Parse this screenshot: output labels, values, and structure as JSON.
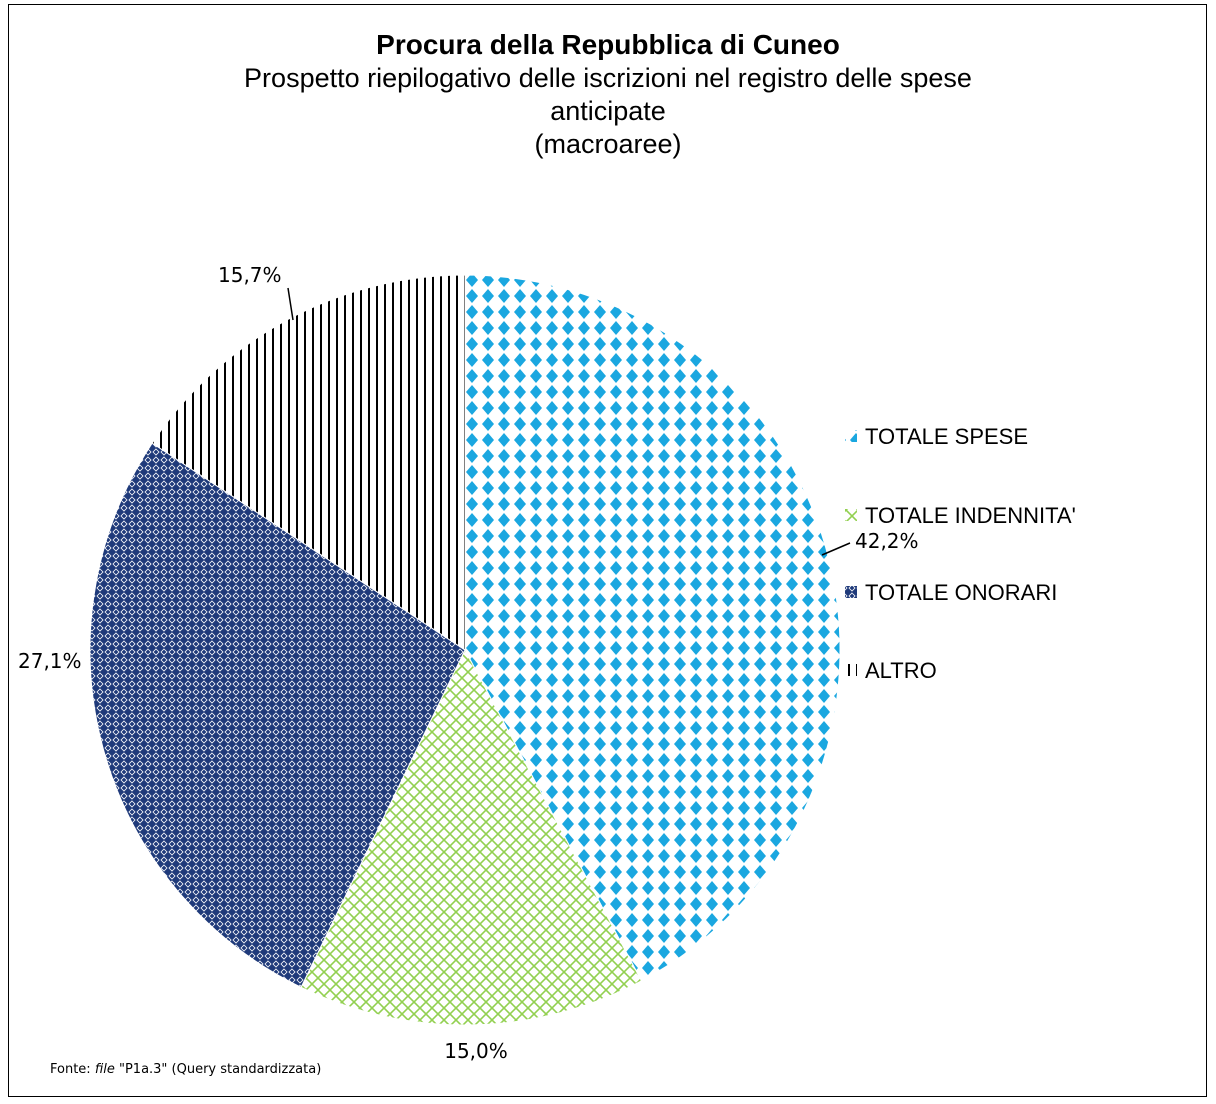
{
  "chart_data": {
    "type": "pie",
    "title": "Procura della Repubblica di Cuneo",
    "subtitle_lines": [
      "Prospetto riepilogativo delle iscrizioni nel registro delle spese",
      "anticipate",
      "(macroaree)"
    ],
    "slices": [
      {
        "label": "TOTALE SPESE",
        "value": 42.2,
        "display": "42,2%",
        "color": "#1aa7e0"
      },
      {
        "label": "TOTALE INDENNITA'",
        "value": 15.0,
        "display": "15,0%",
        "color": "#92d050"
      },
      {
        "label": "TOTALE ONORARI",
        "value": 27.1,
        "display": "27,1%",
        "color": "#1f3a7a"
      },
      {
        "label": "ALTRO",
        "value": 15.7,
        "display": "15,7%",
        "color": "#000000"
      }
    ],
    "legend_position": "right",
    "start_angle": "top, clockwise"
  },
  "footer": {
    "prefix": "Fonte: ",
    "file_word": "file",
    "rest": " \"P1a.3\" (Query standardizzata)"
  }
}
